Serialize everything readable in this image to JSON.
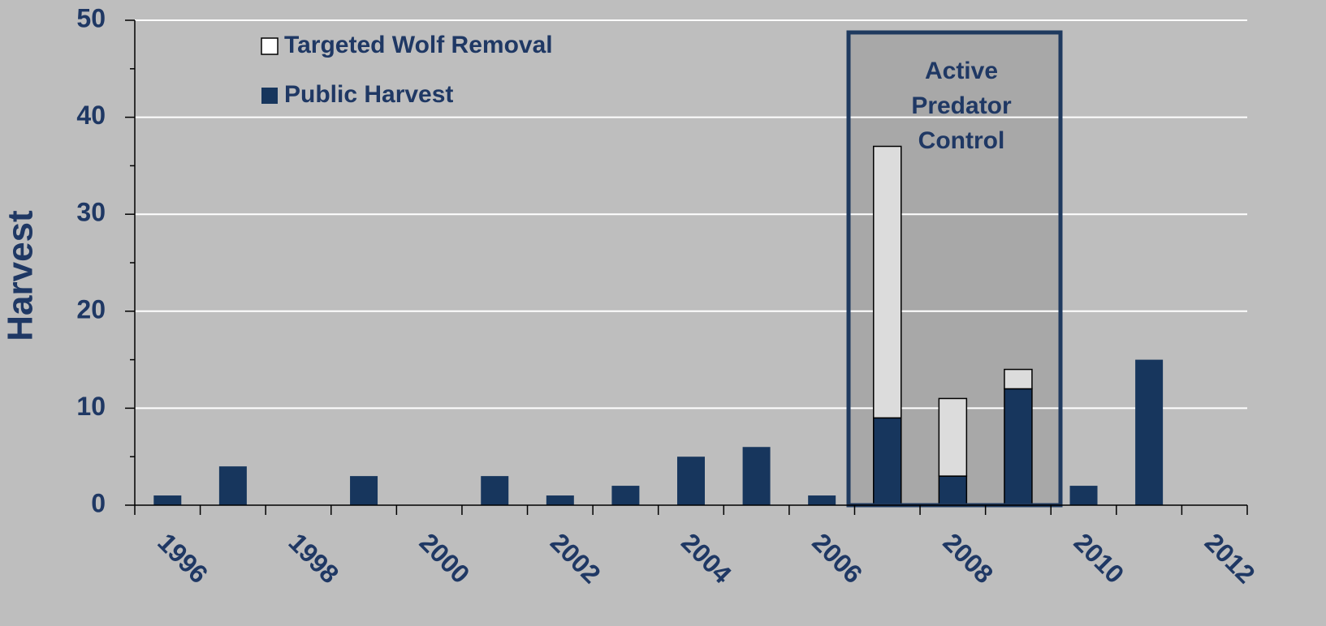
{
  "chart_data": {
    "type": "stacked_bar",
    "y_label": "Harvest",
    "categories": [
      "1996",
      null,
      "1998",
      null,
      "2000",
      null,
      "2002",
      null,
      "2004",
      null,
      "2006",
      null,
      "2008",
      null,
      "2010",
      null,
      "2012"
    ],
    "series": [
      {
        "name": "Public Harvest",
        "color": "#17365d",
        "values": [
          1,
          4,
          0,
          3,
          0,
          3,
          1,
          2,
          5,
          6,
          1,
          9,
          3,
          12,
          2,
          15,
          0
        ]
      },
      {
        "name": "Targeted Wolf Removal",
        "color": "#dcdcdc",
        "values": [
          null,
          null,
          null,
          null,
          null,
          null,
          null,
          null,
          null,
          null,
          null,
          28,
          8,
          2,
          null,
          null,
          null
        ]
      }
    ],
    "ylim": [
      0,
      50
    ],
    "yticks": [
      0,
      10,
      20,
      30,
      40,
      50
    ],
    "yminor_ticks": [
      5,
      15,
      25,
      35,
      45
    ],
    "grid": true,
    "legend": "upper left",
    "annotation": [
      "Active",
      "Predator",
      "Control"
    ]
  }
}
